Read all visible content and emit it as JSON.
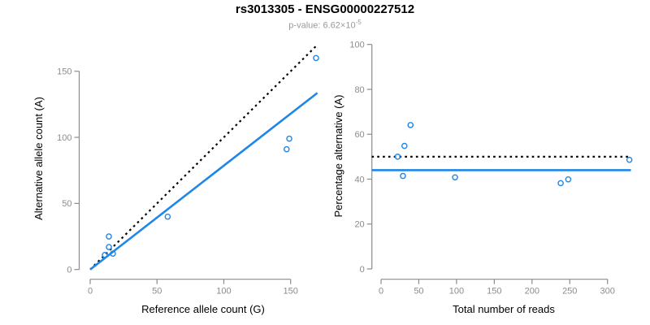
{
  "header": {
    "title": "rs3013305 - ENSG00000227512",
    "subtitle_prefix": "p-value: 6.62×10",
    "subtitle_exponent": "-5"
  },
  "colors": {
    "accent_blue": "#1e87e8",
    "dotted_black": "#000000",
    "axis_gray": "#8c8c8c",
    "tick_label_gray": "#8c8c8c",
    "axis_title_black": "#000000",
    "subtitle_gray": "#9a9a9a",
    "background": "#ffffff"
  },
  "chart_data": [
    {
      "type": "scatter",
      "panel": "allele-counts",
      "xlabel": "Reference allele count (G)",
      "ylabel": "Alternative allele count (A)",
      "xlim": [
        0,
        170
      ],
      "ylim": [
        0,
        170
      ],
      "xticks": [
        0,
        50,
        100,
        150
      ],
      "yticks": [
        0,
        50,
        100,
        150
      ],
      "grid": false,
      "legend_position": "none",
      "points": [
        [
          14,
          25
        ],
        [
          14,
          17
        ],
        [
          11,
          11
        ],
        [
          17,
          12
        ],
        [
          58,
          40
        ],
        [
          147,
          91
        ],
        [
          149,
          99
        ],
        [
          169,
          160
        ]
      ],
      "lines": [
        {
          "name": "expected-1to1-line",
          "kind": "segment",
          "style": "dotted",
          "color": "#000000",
          "x1": 0,
          "y1": 0,
          "x2": 170,
          "y2": 170
        },
        {
          "name": "fitted-proportion-line",
          "kind": "segment",
          "style": "solid",
          "color": "#1e87e8",
          "x1": 0,
          "y1": 0,
          "x2": 170,
          "y2": 133.6
        }
      ]
    },
    {
      "type": "scatter",
      "panel": "percentage-vs-reads",
      "xlabel": "Total number of reads",
      "ylabel": "Percentage alternative (A)",
      "xlim": [
        0,
        330
      ],
      "ylim": [
        0,
        100
      ],
      "xticks": [
        0,
        50,
        100,
        150,
        200,
        250,
        300
      ],
      "yticks": [
        0,
        20,
        40,
        60,
        80,
        100
      ],
      "grid": false,
      "legend_position": "none",
      "points": [
        [
          39,
          64.1
        ],
        [
          31,
          54.8
        ],
        [
          22,
          50
        ],
        [
          29,
          41.4
        ],
        [
          98,
          40.8
        ],
        [
          238,
          38.2
        ],
        [
          248,
          39.9
        ],
        [
          329,
          48.6
        ]
      ],
      "lines": [
        {
          "name": "expected-50pct-line",
          "kind": "hline",
          "style": "dotted",
          "color": "#000000",
          "y": 50
        },
        {
          "name": "observed-mean-line",
          "kind": "hline",
          "style": "solid",
          "color": "#1e87e8",
          "y": 44
        }
      ]
    }
  ]
}
